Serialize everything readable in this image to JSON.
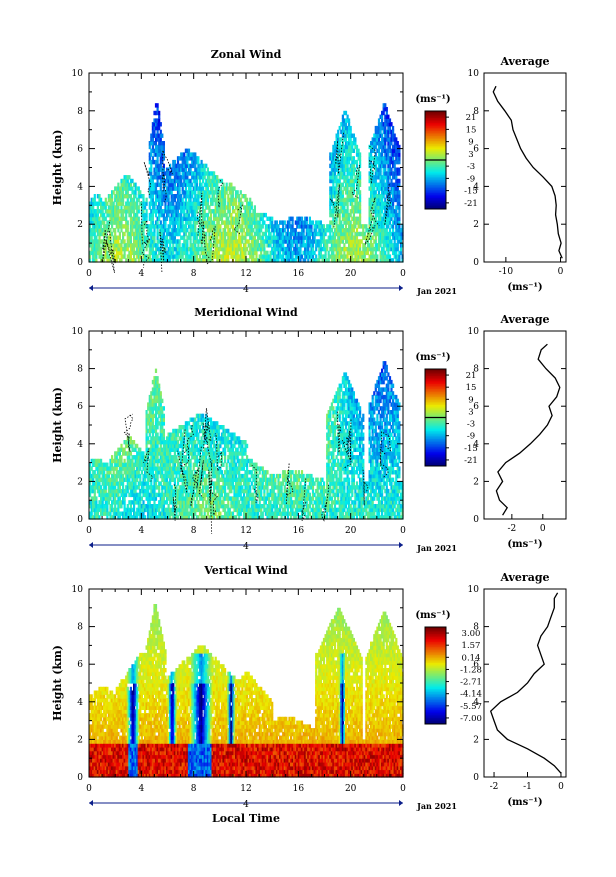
{
  "figure": {
    "date_label": "Jan 2021",
    "xlabel": "Local Time",
    "avg_title": "Average",
    "ylabel": "Height (km)",
    "day_label": "4"
  },
  "chart_data": [
    {
      "type": "heatmap",
      "title": "Zonal Wind",
      "xlabel": "",
      "ylabel": "Height (km)",
      "x_ticks": [
        "0",
        "4",
        "8",
        "12",
        "16",
        "20",
        "0"
      ],
      "y_ticks": [
        "0",
        "2",
        "4",
        "6",
        "8",
        "10"
      ],
      "xlim": [
        0,
        24
      ],
      "ylim": [
        0,
        10
      ],
      "colorbar": {
        "unit": "(ms⁻¹)",
        "ticks": [
          "21",
          "15",
          "9",
          "3",
          "-3",
          "-9",
          "-15",
          "-21"
        ],
        "range": [
          -24,
          24
        ]
      },
      "average_profile": {
        "title": "Average",
        "xlabel": "(ms⁻¹)",
        "x_ticks": [
          "-10",
          "0"
        ],
        "xlim": [
          -14,
          1
        ],
        "height_km": [
          0.2,
          0.6,
          1.0,
          1.5,
          2.0,
          2.5,
          3.0,
          3.5,
          4.0,
          4.5,
          5.0,
          5.5,
          6.0,
          6.5,
          7.0,
          7.5,
          8.0,
          8.5,
          9.0,
          9.3
        ],
        "value_ms": [
          0.3,
          -0.3,
          0.1,
          -0.4,
          -0.6,
          -0.9,
          -0.8,
          -1.0,
          -1.6,
          -3.2,
          -5.0,
          -6.3,
          -7.3,
          -8.0,
          -8.7,
          -9.0,
          -10.2,
          -11.5,
          -12.3,
          -11.8
        ]
      }
    },
    {
      "type": "heatmap",
      "title": "Meridional Wind",
      "xlabel": "",
      "ylabel": "Height (km)",
      "x_ticks": [
        "0",
        "4",
        "8",
        "12",
        "16",
        "20",
        "0"
      ],
      "y_ticks": [
        "0",
        "2",
        "4",
        "6",
        "8",
        "10"
      ],
      "xlim": [
        0,
        24
      ],
      "ylim": [
        0,
        10
      ],
      "colorbar": {
        "unit": "(ms⁻¹)",
        "ticks": [
          "21",
          "15",
          "9",
          "3",
          "-3",
          "-9",
          "-15",
          "-21"
        ],
        "range": [
          -24,
          24
        ]
      },
      "average_profile": {
        "title": "Average",
        "xlabel": "(ms⁻¹)",
        "x_ticks": [
          "-2",
          "0"
        ],
        "xlim": [
          -3.8,
          1.5
        ],
        "height_km": [
          0.2,
          0.6,
          1.0,
          1.5,
          2.0,
          2.5,
          3.0,
          3.5,
          4.0,
          4.5,
          5.0,
          5.5,
          6.0,
          6.5,
          7.0,
          7.5,
          8.0,
          8.5,
          9.0,
          9.3
        ],
        "value_ms": [
          -2.6,
          -2.3,
          -2.8,
          -3.0,
          -2.6,
          -2.9,
          -2.4,
          -1.5,
          -0.8,
          -0.2,
          0.3,
          0.6,
          0.4,
          0.9,
          1.1,
          0.8,
          0.2,
          -0.3,
          -0.1,
          0.3
        ]
      }
    },
    {
      "type": "heatmap",
      "title": "Vertical Wind",
      "xlabel": "Local Time",
      "ylabel": "Height (km)",
      "x_ticks": [
        "0",
        "4",
        "8",
        "12",
        "16",
        "20",
        "0"
      ],
      "y_ticks": [
        "0",
        "2",
        "4",
        "6",
        "8",
        "10"
      ],
      "xlim": [
        0,
        24
      ],
      "ylim": [
        0,
        10
      ],
      "colorbar": {
        "unit": "(ms⁻¹)",
        "ticks": [
          "3.00",
          "1.57",
          "0.14",
          "-1.28",
          "-2.71",
          "-4.14",
          "-5.57",
          "-7.00"
        ],
        "range": [
          -7.7,
          3.7
        ]
      },
      "average_profile": {
        "title": "Average",
        "xlabel": "(ms⁻¹)",
        "x_ticks": [
          "-2",
          "-1",
          "0"
        ],
        "xlim": [
          -2.3,
          0.15
        ],
        "height_km": [
          0.2,
          0.6,
          1.0,
          1.5,
          2.0,
          2.5,
          3.0,
          3.5,
          4.0,
          4.5,
          5.0,
          5.5,
          6.0,
          6.5,
          7.0,
          7.5,
          8.0,
          8.5,
          9.0,
          9.5,
          9.8
        ],
        "value_ms": [
          0.0,
          -0.2,
          -0.5,
          -1.0,
          -1.6,
          -1.9,
          -2.0,
          -2.1,
          -1.8,
          -1.3,
          -1.0,
          -0.8,
          -0.5,
          -0.6,
          -0.7,
          -0.6,
          -0.4,
          -0.3,
          -0.2,
          -0.2,
          -0.1
        ]
      }
    }
  ]
}
